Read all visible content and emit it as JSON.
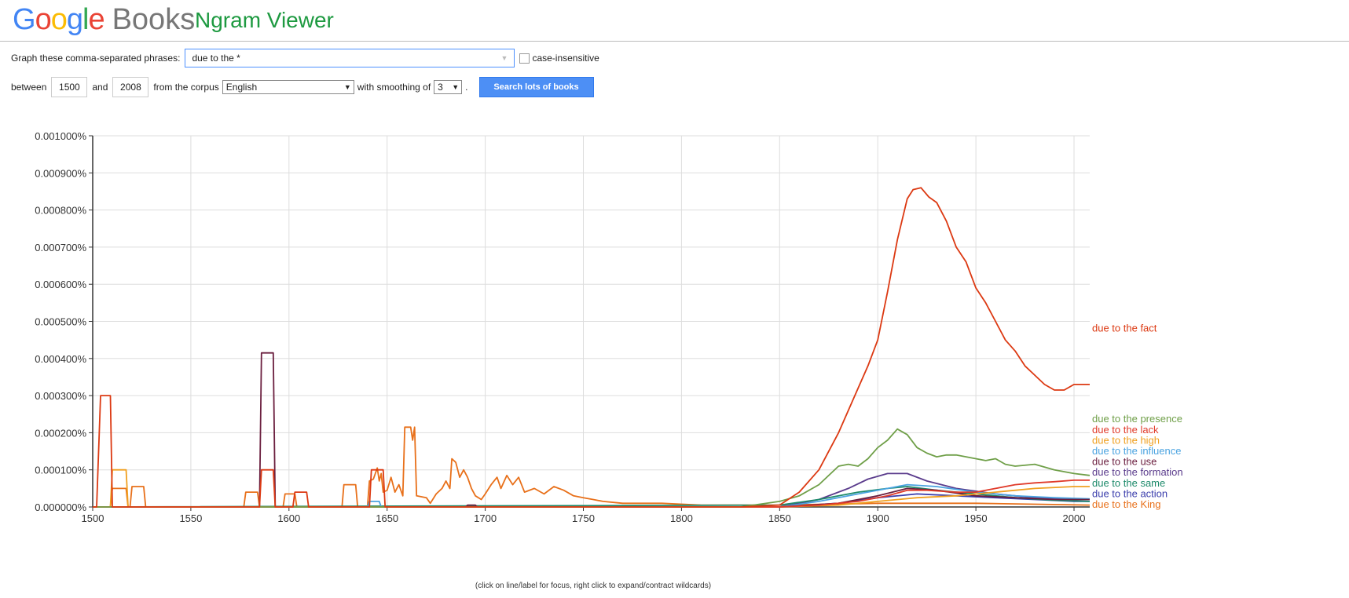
{
  "header": {
    "logo_letters": [
      "G",
      "o",
      "o",
      "g",
      "l",
      "e"
    ],
    "logo_books": "Books",
    "product": "Ngram Viewer"
  },
  "form": {
    "phrases_label": "Graph these comma-separated phrases:",
    "query_value": "due to the *",
    "case_label": "case-insensitive",
    "between_label": "between",
    "year_start": "1500",
    "and_label": "and",
    "year_end": "2008",
    "corpus_label": "from the corpus",
    "corpus_value": "English",
    "smoothing_label": "with smoothing of",
    "smoothing_value": "3",
    "period": ".",
    "search_button": "Search lots of books"
  },
  "chart_data": {
    "type": "line",
    "xlim": [
      1500,
      2008
    ],
    "ylim": [
      0,
      1e-05
    ],
    "grid": true,
    "x_ticks": [
      1500,
      1550,
      1600,
      1650,
      1700,
      1750,
      1800,
      1850,
      1900,
      1950,
      2000
    ],
    "y_ticks": [
      "0.000000%",
      "0.000100%",
      "0.000200%",
      "0.000300%",
      "0.000400%",
      "0.000500%",
      "0.000600%",
      "0.000700%",
      "0.000800%",
      "0.000900%",
      "0.001000%"
    ],
    "series": [
      {
        "name": "due to the fact",
        "color": "#dc3912",
        "points": [
          [
            1500,
            0
          ],
          [
            1502,
            0
          ],
          [
            1504,
            3e-06
          ],
          [
            1509,
            3e-06
          ],
          [
            1510,
            0
          ],
          [
            1585,
            0
          ],
          [
            1586,
            1e-06
          ],
          [
            1592,
            1e-06
          ],
          [
            1593,
            0
          ],
          [
            1602,
            0
          ],
          [
            1603,
            4e-07
          ],
          [
            1609,
            4e-07
          ],
          [
            1610,
            0
          ],
          [
            1641,
            0
          ],
          [
            1642,
            1e-06
          ],
          [
            1648,
            1e-06
          ],
          [
            1649,
            0
          ],
          [
            1830,
            0
          ],
          [
            1850,
            5e-08
          ],
          [
            1860,
            4e-07
          ],
          [
            1870,
            1e-06
          ],
          [
            1880,
            2e-06
          ],
          [
            1890,
            3.2e-06
          ],
          [
            1895,
            3.8e-06
          ],
          [
            1900,
            4.5e-06
          ],
          [
            1905,
            5.8e-06
          ],
          [
            1910,
            7.2e-06
          ],
          [
            1915,
            8.3e-06
          ],
          [
            1918,
            8.55e-06
          ],
          [
            1922,
            8.6e-06
          ],
          [
            1926,
            8.35e-06
          ],
          [
            1930,
            8.2e-06
          ],
          [
            1935,
            7.7e-06
          ],
          [
            1940,
            7e-06
          ],
          [
            1945,
            6.6e-06
          ],
          [
            1950,
            5.9e-06
          ],
          [
            1955,
            5.5e-06
          ],
          [
            1960,
            5e-06
          ],
          [
            1965,
            4.5e-06
          ],
          [
            1970,
            4.2e-06
          ],
          [
            1975,
            3.8e-06
          ],
          [
            1980,
            3.55e-06
          ],
          [
            1985,
            3.3e-06
          ],
          [
            1990,
            3.15e-06
          ],
          [
            1995,
            3.15e-06
          ],
          [
            2000,
            3.3e-06
          ],
          [
            2008,
            3.3e-06
          ]
        ]
      },
      {
        "name": "due to the presence",
        "color": "#6f9f48",
        "points": [
          [
            1500,
            0
          ],
          [
            1830,
            0
          ],
          [
            1850,
            1.5e-07
          ],
          [
            1860,
            3e-07
          ],
          [
            1870,
            6e-07
          ],
          [
            1880,
            1.1e-06
          ],
          [
            1885,
            1.15e-06
          ],
          [
            1890,
            1.1e-06
          ],
          [
            1895,
            1.3e-06
          ],
          [
            1900,
            1.6e-06
          ],
          [
            1905,
            1.8e-06
          ],
          [
            1910,
            2.1e-06
          ],
          [
            1915,
            1.95e-06
          ],
          [
            1920,
            1.6e-06
          ],
          [
            1925,
            1.45e-06
          ],
          [
            1930,
            1.35e-06
          ],
          [
            1935,
            1.4e-06
          ],
          [
            1940,
            1.4e-06
          ],
          [
            1945,
            1.35e-06
          ],
          [
            1950,
            1.3e-06
          ],
          [
            1955,
            1.25e-06
          ],
          [
            1960,
            1.3e-06
          ],
          [
            1965,
            1.15e-06
          ],
          [
            1970,
            1.1e-06
          ],
          [
            1980,
            1.15e-06
          ],
          [
            1990,
            1e-06
          ],
          [
            2000,
            9e-07
          ],
          [
            2008,
            8.5e-07
          ]
        ]
      },
      {
        "name": "due to the lack",
        "color": "#e03a2a",
        "points": [
          [
            1500,
            0
          ],
          [
            1850,
            0
          ],
          [
            1870,
            5e-08
          ],
          [
            1890,
            1.5e-07
          ],
          [
            1905,
            3e-07
          ],
          [
            1915,
            4.5e-07
          ],
          [
            1925,
            4.5e-07
          ],
          [
            1940,
            4e-07
          ],
          [
            1950,
            4e-07
          ],
          [
            1960,
            5e-07
          ],
          [
            1970,
            6e-07
          ],
          [
            1980,
            6.5e-07
          ],
          [
            1990,
            6.8e-07
          ],
          [
            2000,
            7.2e-07
          ],
          [
            2008,
            7.2e-07
          ]
        ]
      },
      {
        "name": "due to the high",
        "color": "#f0a020",
        "points": [
          [
            1500,
            0
          ],
          [
            1509,
            0
          ],
          [
            1510,
            1e-06
          ],
          [
            1517,
            1e-06
          ],
          [
            1518,
            0
          ],
          [
            1850,
            0
          ],
          [
            1880,
            5e-08
          ],
          [
            1900,
            1.5e-07
          ],
          [
            1920,
            2.5e-07
          ],
          [
            1940,
            3e-07
          ],
          [
            1960,
            4e-07
          ],
          [
            1980,
            5e-07
          ],
          [
            2000,
            5.5e-07
          ],
          [
            2008,
            5.5e-07
          ]
        ]
      },
      {
        "name": "due to the use",
        "color": "#6b1f3f",
        "points": [
          [
            1500,
            0
          ],
          [
            1585,
            0
          ],
          [
            1586,
            4.15e-06
          ],
          [
            1592,
            4.15e-06
          ],
          [
            1593,
            0
          ],
          [
            1690,
            0
          ],
          [
            1691,
            5e-08
          ],
          [
            1695,
            5e-08
          ],
          [
            1696,
            0
          ],
          [
            1850,
            0
          ],
          [
            1880,
            1e-07
          ],
          [
            1900,
            3e-07
          ],
          [
            1915,
            5e-07
          ],
          [
            1930,
            4.5e-07
          ],
          [
            1950,
            3e-07
          ],
          [
            1970,
            2.5e-07
          ],
          [
            1990,
            2e-07
          ],
          [
            2008,
            2e-07
          ]
        ]
      },
      {
        "name": "due to the influence",
        "color": "#4aa3e0",
        "points": [
          [
            1500,
            0
          ],
          [
            1640,
            0
          ],
          [
            1641,
            1.5e-07
          ],
          [
            1646,
            1.5e-07
          ],
          [
            1647,
            0
          ],
          [
            1850,
            0
          ],
          [
            1870,
            1.5e-07
          ],
          [
            1890,
            3.5e-07
          ],
          [
            1905,
            5e-07
          ],
          [
            1915,
            6e-07
          ],
          [
            1930,
            5.5e-07
          ],
          [
            1950,
            4e-07
          ],
          [
            1970,
            3e-07
          ],
          [
            1990,
            2.5e-07
          ],
          [
            2008,
            2.2e-07
          ]
        ]
      },
      {
        "name": "due to the same",
        "color": "#1c8a6a",
        "points": [
          [
            1500,
            0
          ],
          [
            1850,
            5e-08
          ],
          [
            1870,
            2e-07
          ],
          [
            1890,
            4e-07
          ],
          [
            1905,
            5e-07
          ],
          [
            1915,
            5.5e-07
          ],
          [
            1930,
            4.5e-07
          ],
          [
            1950,
            3.5e-07
          ],
          [
            1970,
            2.5e-07
          ],
          [
            1990,
            1.8e-07
          ],
          [
            2008,
            1.5e-07
          ]
        ]
      },
      {
        "name": "due to the formation",
        "color": "#5a3b8c",
        "points": [
          [
            1500,
            0
          ],
          [
            1850,
            0
          ],
          [
            1870,
            2e-07
          ],
          [
            1885,
            5e-07
          ],
          [
            1895,
            7.5e-07
          ],
          [
            1905,
            9e-07
          ],
          [
            1915,
            9e-07
          ],
          [
            1925,
            7e-07
          ],
          [
            1940,
            5e-07
          ],
          [
            1960,
            3.5e-07
          ],
          [
            1980,
            2.5e-07
          ],
          [
            2000,
            2e-07
          ],
          [
            2008,
            2e-07
          ]
        ]
      },
      {
        "name": "due to the King",
        "color": "#e8701a",
        "points": [
          [
            1500,
            0
          ],
          [
            1509,
            0
          ],
          [
            1510,
            5e-07
          ],
          [
            1517,
            5e-07
          ],
          [
            1518,
            0
          ],
          [
            1519,
            0
          ],
          [
            1520,
            5.5e-07
          ],
          [
            1526,
            5.5e-07
          ],
          [
            1527,
            0
          ],
          [
            1577,
            0
          ],
          [
            1578,
            4e-07
          ],
          [
            1584,
            4e-07
          ],
          [
            1585,
            0
          ],
          [
            1597,
            0
          ],
          [
            1598,
            3.5e-07
          ],
          [
            1603,
            3.5e-07
          ],
          [
            1604,
            0
          ],
          [
            1627,
            0
          ],
          [
            1628,
            6e-07
          ],
          [
            1634,
            6e-07
          ],
          [
            1635,
            0
          ],
          [
            1640,
            0
          ],
          [
            1641,
            7e-07
          ],
          [
            1643,
            7.5e-07
          ],
          [
            1645,
            1.05e-06
          ],
          [
            1646,
            7e-07
          ],
          [
            1647,
            9e-07
          ],
          [
            1648,
            4e-07
          ],
          [
            1650,
            4.5e-07
          ],
          [
            1652,
            8e-07
          ],
          [
            1654,
            4e-07
          ],
          [
            1656,
            6e-07
          ],
          [
            1658,
            3e-07
          ],
          [
            1659,
            2.15e-06
          ],
          [
            1662,
            2.15e-06
          ],
          [
            1663,
            1.8e-06
          ],
          [
            1664,
            2.15e-06
          ],
          [
            1665,
            3e-07
          ],
          [
            1670,
            2.5e-07
          ],
          [
            1672,
            1e-07
          ],
          [
            1675,
            3.5e-07
          ],
          [
            1678,
            5e-07
          ],
          [
            1680,
            7e-07
          ],
          [
            1682,
            5e-07
          ],
          [
            1683,
            1.3e-06
          ],
          [
            1685,
            1.2e-06
          ],
          [
            1687,
            8e-07
          ],
          [
            1689,
            1e-06
          ],
          [
            1691,
            8e-07
          ],
          [
            1693,
            5e-07
          ],
          [
            1695,
            3e-07
          ],
          [
            1698,
            2e-07
          ],
          [
            1700,
            3.5e-07
          ],
          [
            1703,
            6e-07
          ],
          [
            1706,
            8e-07
          ],
          [
            1708,
            5e-07
          ],
          [
            1711,
            8.5e-07
          ],
          [
            1714,
            6e-07
          ],
          [
            1717,
            8e-07
          ],
          [
            1720,
            4e-07
          ],
          [
            1725,
            5e-07
          ],
          [
            1730,
            3.5e-07
          ],
          [
            1735,
            5.5e-07
          ],
          [
            1740,
            4.5e-07
          ],
          [
            1745,
            3e-07
          ],
          [
            1750,
            2.5e-07
          ],
          [
            1755,
            2e-07
          ],
          [
            1760,
            1.5e-07
          ],
          [
            1770,
            1e-07
          ],
          [
            1790,
            1e-07
          ],
          [
            1810,
            5e-08
          ],
          [
            1850,
            5e-08
          ],
          [
            1900,
            1e-07
          ],
          [
            1950,
            1e-07
          ],
          [
            2008,
            5e-08
          ]
        ]
      },
      {
        "name": "due to the action",
        "color": "#3b3eac",
        "points": [
          [
            1500,
            0
          ],
          [
            1850,
            0
          ],
          [
            1880,
            1e-07
          ],
          [
            1900,
            2.5e-07
          ],
          [
            1920,
            3.5e-07
          ],
          [
            1940,
            3e-07
          ],
          [
            1960,
            2.5e-07
          ],
          [
            1980,
            2e-07
          ],
          [
            2000,
            1.5e-07
          ],
          [
            2008,
            1.5e-07
          ]
        ]
      }
    ]
  },
  "footnote": "(click on line/label for focus, right click to expand/contract wildcards)"
}
